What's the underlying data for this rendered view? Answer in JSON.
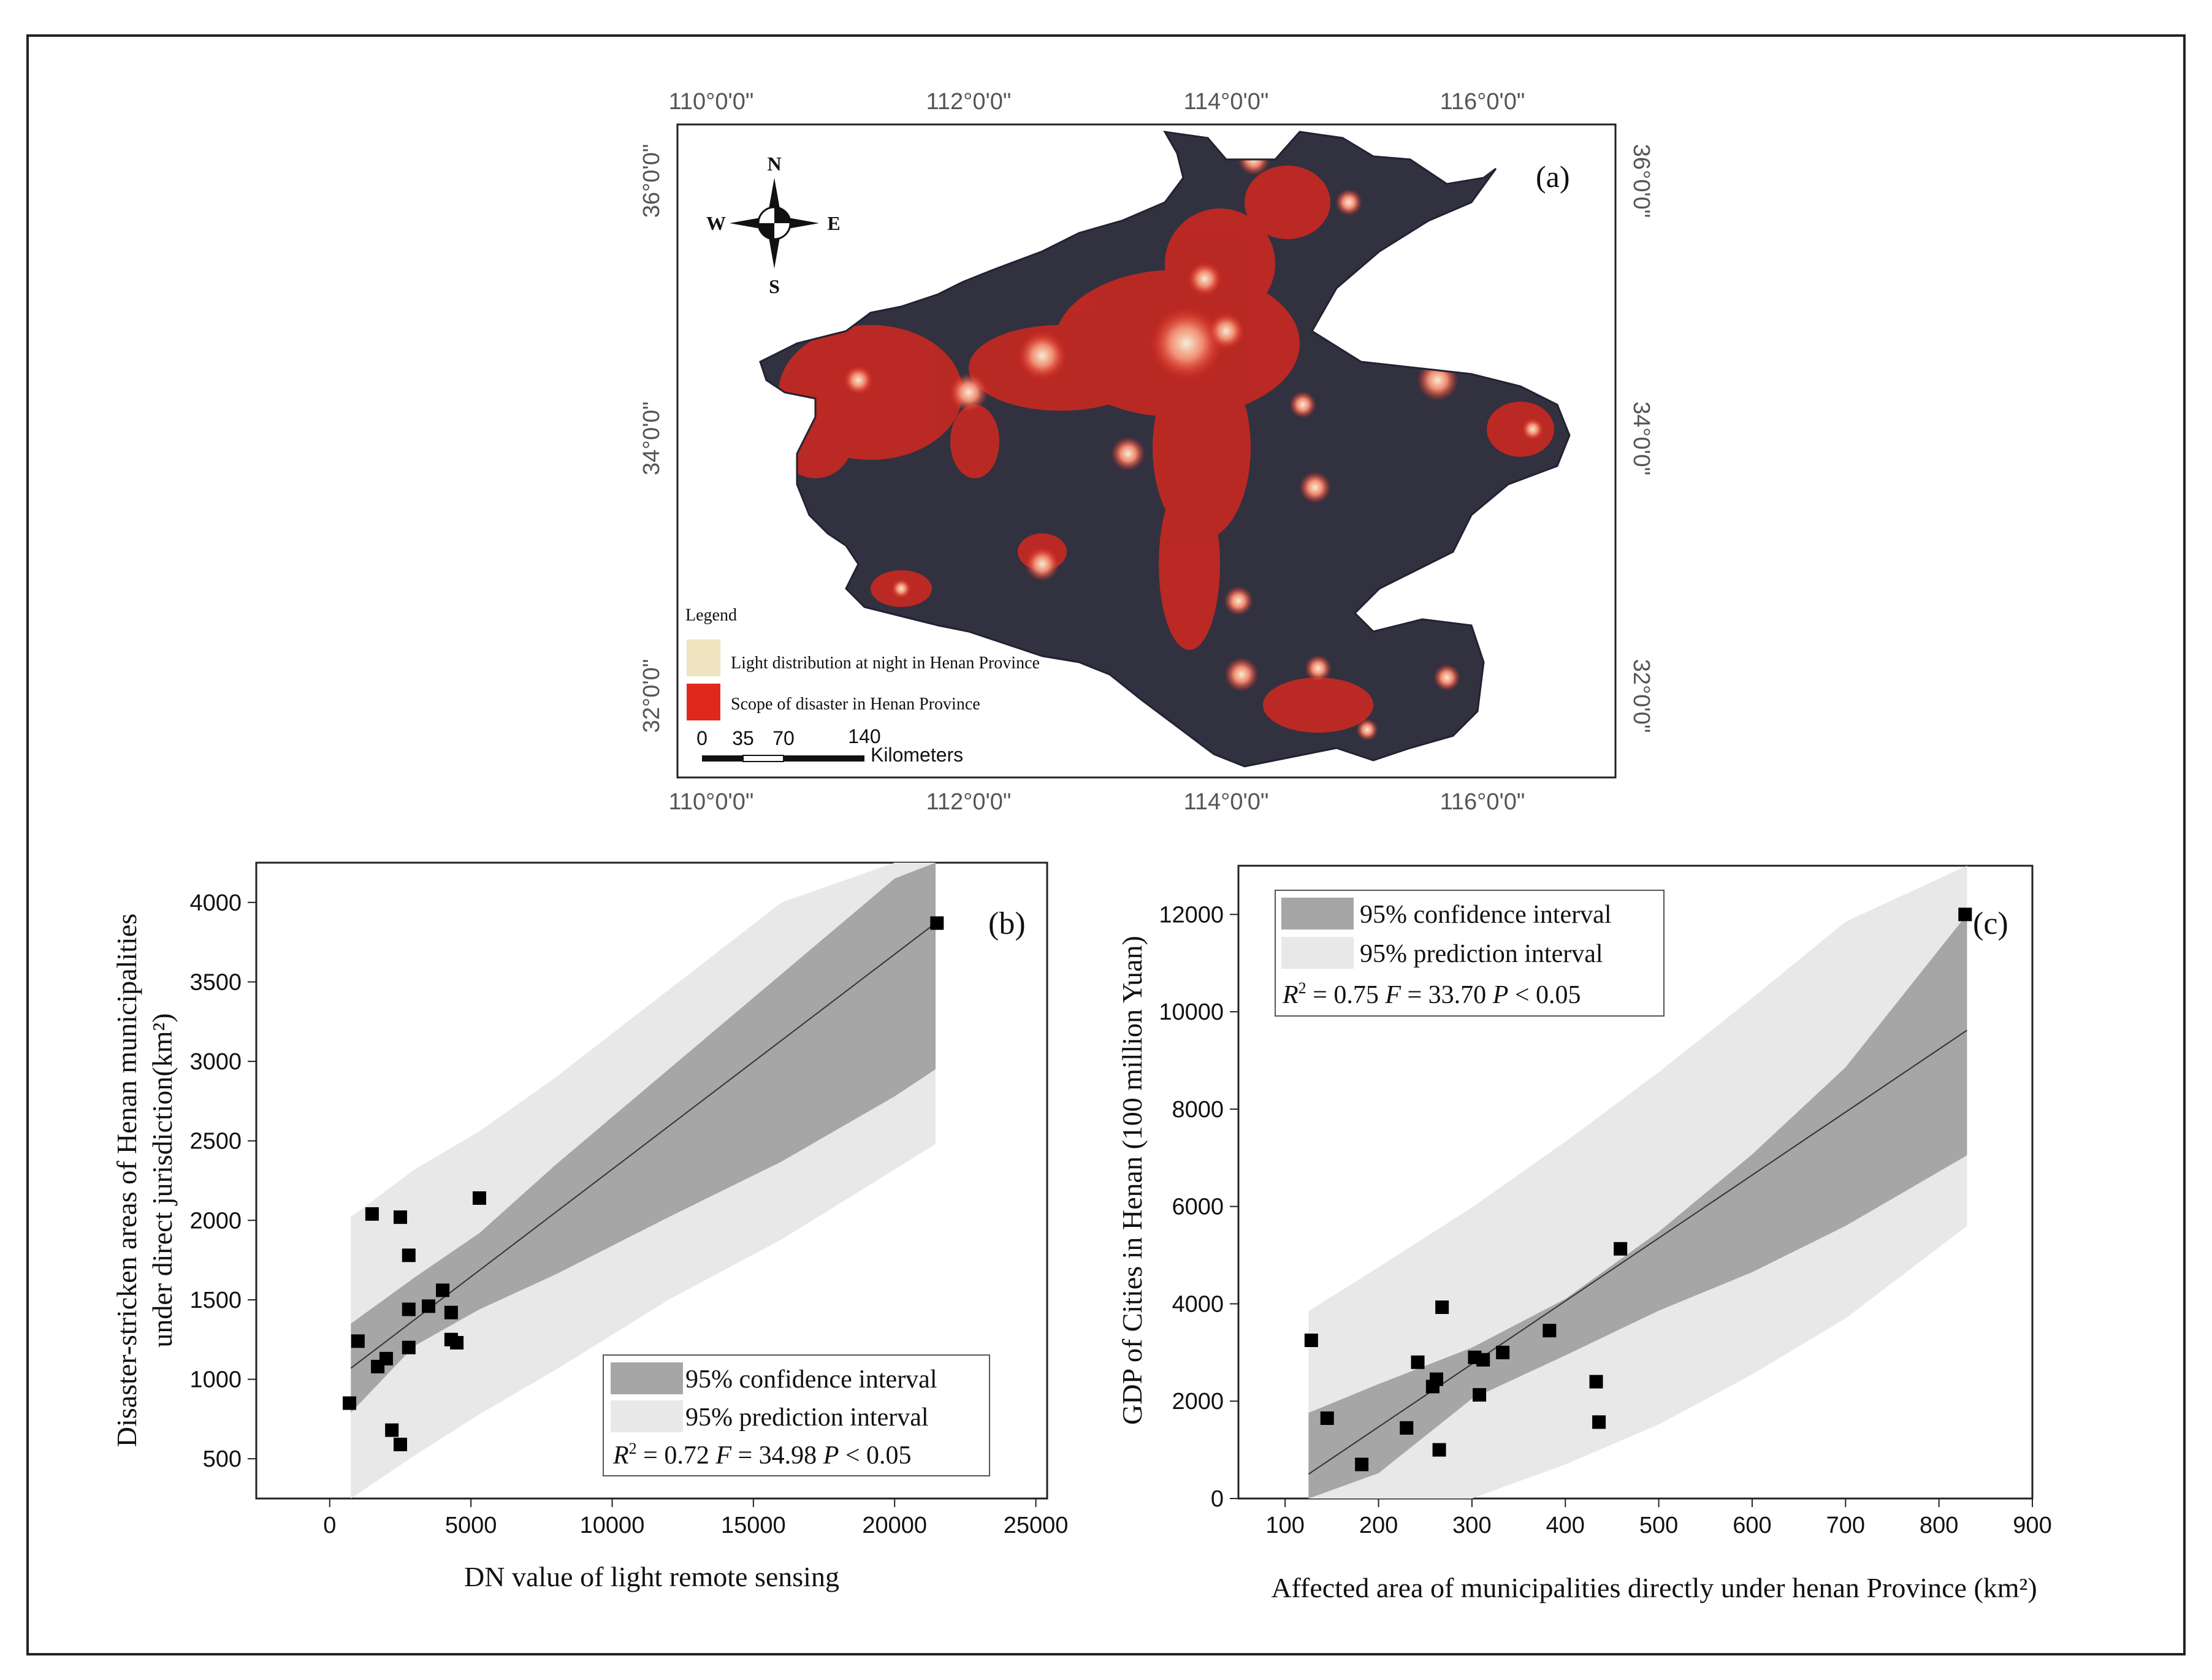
{
  "colors": {
    "map_background": "#32313f",
    "disaster": "#e0281c",
    "light": "#efe3c0",
    "confidence_band": "#a6a6a6",
    "prediction_band": "#e8e8e8",
    "point": "#000000"
  },
  "map": {
    "panel_label": "(a)",
    "longitude_labels": [
      "110°0'0\"",
      "112°0'0\"",
      "114°0'0\"",
      "116°0'0\""
    ],
    "latitude_labels": [
      "36°0'0\"",
      "34°0'0\"",
      "32°0'0\""
    ],
    "compass": {
      "north": "N",
      "south": "S",
      "east": "E",
      "west": "W"
    },
    "legend": {
      "title": "Legend",
      "items": [
        {
          "label": "Light distribution at night in Henan Province",
          "color_key": "light"
        },
        {
          "label": "Scope of disaster in Henan Province",
          "color_key": "disaster"
        }
      ]
    },
    "scalebar": {
      "ticks": [
        "0",
        "35",
        "70",
        "140"
      ],
      "unit": "Kilometers"
    }
  },
  "chart_data": [
    {
      "type": "scatter",
      "panel_label": "(b)",
      "xlabel": "DN value of light remote sensing",
      "ylabel_lines": [
        "Disaster-stricken areas of Henan municipalities",
        "under direct jurisdiction(km²)"
      ],
      "xlim": [
        -2600,
        25400
      ],
      "ylim": [
        250,
        4250
      ],
      "xticks": [
        0,
        5000,
        10000,
        15000,
        20000,
        25000
      ],
      "xtick_labels": [
        "0",
        "5000",
        "10000",
        "15000",
        "20000",
        "25000"
      ],
      "yticks": [
        500,
        1000,
        1500,
        2000,
        2500,
        3000,
        3500,
        4000
      ],
      "ytick_labels": [
        "500",
        "1000",
        "1500",
        "2000",
        "2500",
        "3000",
        "3500",
        "4000"
      ],
      "points": [
        {
          "x": 700,
          "y": 850
        },
        {
          "x": 1000,
          "y": 1240
        },
        {
          "x": 1500,
          "y": 2040
        },
        {
          "x": 1700,
          "y": 1080
        },
        {
          "x": 2000,
          "y": 1130
        },
        {
          "x": 2200,
          "y": 680
        },
        {
          "x": 2500,
          "y": 2020
        },
        {
          "x": 2500,
          "y": 590
        },
        {
          "x": 2800,
          "y": 1780
        },
        {
          "x": 2800,
          "y": 1440
        },
        {
          "x": 2800,
          "y": 1200
        },
        {
          "x": 3500,
          "y": 1460
        },
        {
          "x": 4000,
          "y": 1560
        },
        {
          "x": 4300,
          "y": 1420
        },
        {
          "x": 4300,
          "y": 1250
        },
        {
          "x": 4500,
          "y": 1230
        },
        {
          "x": 5300,
          "y": 2140
        },
        {
          "x": 21500,
          "y": 3870
        }
      ],
      "fit_line": {
        "x": [
          750,
          21450
        ],
        "y": [
          1070,
          3870
        ]
      },
      "confidence_band": {
        "x": [
          750,
          3000,
          5300,
          8000,
          12000,
          16000,
          20000,
          21450
        ],
        "upper": [
          1350,
          1640,
          1920,
          2350,
          2950,
          3550,
          4150,
          4350
        ],
        "lower": [
          790,
          1210,
          1440,
          1660,
          2020,
          2370,
          2780,
          2950
        ]
      },
      "prediction_band": {
        "x": [
          750,
          3000,
          5300,
          8000,
          12000,
          16000,
          20000,
          21450
        ],
        "upper": [
          2020,
          2320,
          2560,
          2900,
          3450,
          4000,
          4300,
          4300
        ],
        "lower": [
          250,
          520,
          780,
          1060,
          1500,
          1880,
          2320,
          2480
        ]
      },
      "legend": {
        "items": [
          {
            "label": "95% confidence interval",
            "color_key": "confidence_band"
          },
          {
            "label": "95% prediction  interval",
            "color_key": "prediction_band"
          }
        ],
        "stat_line": {
          "r_label": "R",
          "r_exp": "2",
          "text": " = 0.72 ",
          "f_label": "F",
          "f_text": " = 34.98 ",
          "p_label": "P",
          "p_text": " < 0.05"
        },
        "placement": "bottom-right"
      }
    },
    {
      "type": "scatter",
      "panel_label": "(c)",
      "xlabel": "Affected area of municipalities directly under henan Province (km²)",
      "ylabel": "GDP of Cities in Henan (100 million Yuan)",
      "xlim": [
        50,
        900
      ],
      "ylim": [
        0,
        13000
      ],
      "xticks": [
        100,
        200,
        300,
        400,
        500,
        600,
        700,
        800,
        900
      ],
      "xtick_labels": [
        "100",
        "200",
        "300",
        "400",
        "500",
        "600",
        "700",
        "800",
        "900"
      ],
      "yticks": [
        0,
        2000,
        4000,
        6000,
        8000,
        10000,
        12000
      ],
      "ytick_labels": [
        "0",
        "2000",
        "4000",
        "6000",
        "8000",
        "10000",
        "12000"
      ],
      "points": [
        {
          "x": 128,
          "y": 3250
        },
        {
          "x": 145,
          "y": 1650
        },
        {
          "x": 182,
          "y": 700
        },
        {
          "x": 230,
          "y": 1450
        },
        {
          "x": 242,
          "y": 2800
        },
        {
          "x": 258,
          "y": 2300
        },
        {
          "x": 262,
          "y": 2450
        },
        {
          "x": 265,
          "y": 1000
        },
        {
          "x": 268,
          "y": 3930
        },
        {
          "x": 303,
          "y": 2900
        },
        {
          "x": 308,
          "y": 2130
        },
        {
          "x": 312,
          "y": 2850
        },
        {
          "x": 333,
          "y": 3000
        },
        {
          "x": 383,
          "y": 3450
        },
        {
          "x": 433,
          "y": 2400
        },
        {
          "x": 436,
          "y": 1570
        },
        {
          "x": 459,
          "y": 5130
        },
        {
          "x": 828,
          "y": 12000
        }
      ],
      "fit_line": {
        "x": [
          125,
          830
        ],
        "y": [
          500,
          9620
        ]
      },
      "confidence_band": {
        "x": [
          125,
          200,
          300,
          400,
          500,
          600,
          700,
          830
        ],
        "upper": [
          1760,
          2350,
          3100,
          4100,
          5480,
          7070,
          8860,
          12000
        ],
        "lower": [
          0,
          520,
          2050,
          2940,
          3860,
          4650,
          5600,
          7050
        ]
      },
      "prediction_band": {
        "x": [
          125,
          200,
          300,
          400,
          500,
          600,
          700,
          830
        ],
        "upper": [
          3850,
          4750,
          5980,
          7330,
          8760,
          10280,
          11850,
          13000
        ],
        "lower": [
          0,
          0,
          0,
          700,
          1520,
          2550,
          3700,
          5600
        ]
      },
      "legend": {
        "items": [
          {
            "label": "95% confidence interval",
            "color_key": "confidence_band"
          },
          {
            "label": "95% prediction  interval",
            "color_key": "prediction_band"
          }
        ],
        "stat_line": {
          "r_label": "R",
          "r_exp": "2",
          "text": " = 0.75 ",
          "f_label": "F",
          "f_text": " = 33.70 ",
          "p_label": "P",
          "p_text": " < 0.05"
        },
        "placement": "top-left"
      }
    }
  ]
}
